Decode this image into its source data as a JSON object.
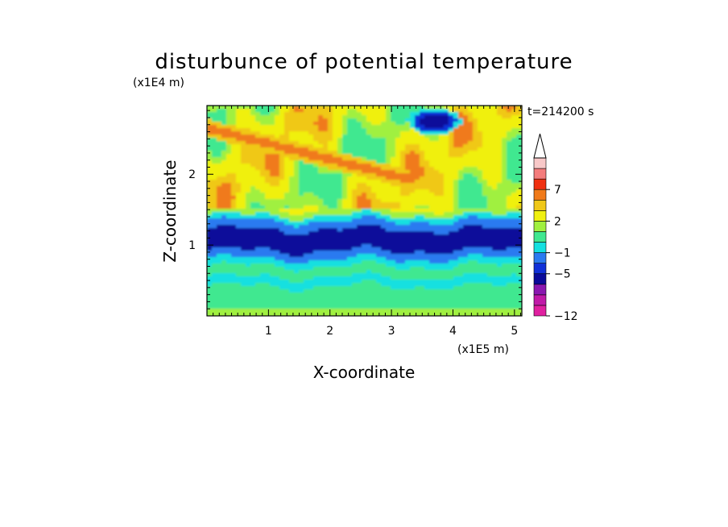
{
  "chart_data": {
    "type": "heatmap",
    "title": "disturbunce of potential temperature",
    "xlabel": "X-coordinate",
    "ylabel": "Z-coordinate",
    "x_unit": "(x1E5 m)",
    "y_unit": "(x1E4 m)",
    "time_label": "t=214200 s",
    "xlim": [
      0,
      5.12
    ],
    "ylim": [
      0,
      2.97
    ],
    "x_ticks": [
      1,
      2,
      3,
      4,
      5
    ],
    "y_ticks": [
      1,
      2
    ],
    "x_tick_labels": [
      "1",
      "2",
      "3",
      "4",
      "5"
    ],
    "y_tick_labels": [
      "1",
      "2"
    ],
    "colorbar": {
      "levels": [
        -12,
        -11,
        -9,
        -7,
        -5,
        -3,
        -1,
        0,
        1,
        2,
        3,
        5,
        7,
        9,
        11
      ],
      "tick_values": [
        -12,
        -5,
        -1,
        2,
        7
      ],
      "tick_labels": [
        "−12",
        "−5",
        "−1",
        "2",
        "7"
      ],
      "colors": [
        "#e020a0",
        "#c01aa8",
        "#8a18b0",
        "#0a0a9a",
        "#1030d8",
        "#2a7af0",
        "#14e0e0",
        "#40e890",
        "#a0f040",
        "#f0f010",
        "#f0c818",
        "#f07a1a",
        "#f03010",
        "#f47c7c",
        "#f8c8c8"
      ],
      "extend": "max"
    }
  }
}
